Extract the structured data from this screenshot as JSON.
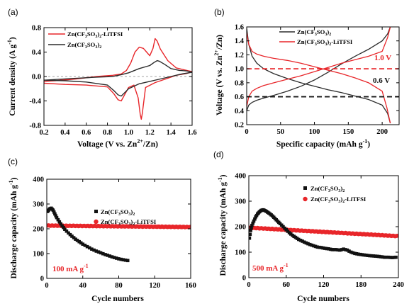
{
  "chart_data": [
    {
      "id": "a",
      "panel_label": "(a)",
      "type": "line",
      "xlabel": "Voltage (V vs. Zn2+/Zn)",
      "ylabel": "Current density (A g-1)",
      "xlim": [
        0.2,
        1.6
      ],
      "ylim": [
        -0.8,
        0.8
      ],
      "xticks": [
        "0.2",
        "0.4",
        "0.6",
        "0.8",
        "1.0",
        "1.2",
        "1.4",
        "1.6"
      ],
      "yticks": [
        "-0.8",
        "-0.4",
        "0.0",
        "0.4",
        "0.8"
      ],
      "legend_position": "top-left",
      "series": [
        {
          "name": "Zn(CF3SO3)2-LiTFSI",
          "color": "#e8262a",
          "x": [
            0.2,
            0.4,
            0.6,
            0.8,
            0.86,
            0.9,
            0.93,
            1.0,
            1.05,
            1.09,
            1.11,
            1.12,
            1.13,
            1.16,
            1.25,
            1.35,
            1.45,
            1.55,
            1.6,
            1.55,
            1.45,
            1.37,
            1.3,
            1.27,
            1.25,
            1.23,
            1.2,
            1.17,
            1.14,
            1.1,
            1.06,
            1.02,
            0.98,
            0.93,
            0.85,
            0.7,
            0.5,
            0.3,
            0.2
          ],
          "y": [
            -0.11,
            -0.13,
            -0.14,
            -0.17,
            -0.28,
            -0.38,
            -0.4,
            -0.18,
            -0.14,
            -0.35,
            -0.62,
            -0.7,
            -0.6,
            -0.18,
            -0.1,
            -0.04,
            0.02,
            0.05,
            0.08,
            0.1,
            0.14,
            0.26,
            0.45,
            0.58,
            0.62,
            0.46,
            0.34,
            0.4,
            0.46,
            0.48,
            0.4,
            0.22,
            0.1,
            0.04,
            0.02,
            0.0,
            -0.04,
            -0.07,
            -0.08
          ]
        },
        {
          "name": "Zn(CF3SO3)2",
          "color": "#2b2b2b",
          "x": [
            0.2,
            0.4,
            0.6,
            0.8,
            0.86,
            0.9,
            0.93,
            0.96,
            1.0,
            1.1,
            1.2,
            1.3,
            1.4,
            1.5,
            1.6,
            1.55,
            1.48,
            1.4,
            1.34,
            1.29,
            1.27,
            1.24,
            1.2,
            1.1,
            1.0,
            0.93,
            0.85,
            0.7,
            0.5,
            0.3,
            0.2
          ],
          "y": [
            -0.06,
            -0.07,
            -0.09,
            -0.14,
            -0.23,
            -0.3,
            -0.32,
            -0.27,
            -0.2,
            -0.12,
            -0.08,
            -0.04,
            0.0,
            0.04,
            0.07,
            0.09,
            0.1,
            0.13,
            0.2,
            0.25,
            0.26,
            0.23,
            0.18,
            0.13,
            0.06,
            0.03,
            0.0,
            -0.01,
            -0.03,
            -0.05,
            -0.06
          ]
        }
      ]
    },
    {
      "id": "b",
      "panel_label": "(b)",
      "type": "line",
      "xlabel": "Specific capacity (mAh g-1)",
      "ylabel": "Voltage (V vs. Zn2+/Zn)",
      "xlim": [
        0,
        225
      ],
      "ylim": [
        0.2,
        1.6
      ],
      "xticks": [
        "0",
        "50",
        "100",
        "150",
        "200"
      ],
      "yticks": [
        "0.2",
        "0.4",
        "0.6",
        "0.8",
        "1.0",
        "1.2",
        "1.4",
        "1.6"
      ],
      "legend_position": "top-center",
      "annotations": [
        "1.0 V",
        "0.6 V"
      ],
      "reference_lines": [
        {
          "label": "1.0 V",
          "y": 1.0,
          "color": "#e8262a",
          "dashed": true
        },
        {
          "label": "0.6 V",
          "y": 0.6,
          "color": "#1a1a1a",
          "dashed": true
        }
      ],
      "series": [
        {
          "name": "Zn(CF3SO3)2",
          "color": "#2b2b2b",
          "discharge": {
            "x": [
              0,
              3,
              8,
              15,
              25,
              40,
              60,
              80,
              100,
              120,
              140,
              160,
              180,
              200,
              208,
              212
            ],
            "y": [
              1.58,
              1.35,
              1.18,
              1.08,
              1.0,
              0.93,
              0.86,
              0.8,
              0.75,
              0.7,
              0.66,
              0.61,
              0.56,
              0.48,
              0.36,
              0.22
            ]
          },
          "charge": {
            "x": [
              0,
              3,
              8,
              15,
              25,
              40,
              60,
              80,
              100,
              120,
              140,
              160,
              180,
              200,
              208,
              212
            ],
            "y": [
              0.4,
              0.48,
              0.52,
              0.55,
              0.58,
              0.62,
              0.68,
              0.75,
              0.84,
              0.95,
              1.07,
              1.18,
              1.28,
              1.4,
              1.5,
              1.6
            ]
          }
        },
        {
          "name": "Zn(CF3SO3)2-LiTFSI",
          "color": "#e8262a",
          "discharge": {
            "x": [
              0,
              3,
              8,
              15,
              25,
              40,
              60,
              80,
              100,
              120,
              140,
              160,
              180,
              200,
              207,
              212
            ],
            "y": [
              1.52,
              1.35,
              1.25,
              1.21,
              1.18,
              1.15,
              1.12,
              1.08,
              1.03,
              0.98,
              0.93,
              0.87,
              0.8,
              0.68,
              0.44,
              0.22
            ]
          },
          "charge": {
            "x": [
              0,
              3,
              8,
              15,
              25,
              40,
              60,
              80,
              100,
              120,
              140,
              160,
              180,
              200,
              208,
              212
            ],
            "y": [
              0.46,
              0.6,
              0.68,
              0.72,
              0.76,
              0.8,
              0.85,
              0.9,
              0.96,
              1.02,
              1.08,
              1.13,
              1.18,
              1.25,
              1.45,
              1.6
            ]
          }
        }
      ]
    },
    {
      "id": "c",
      "panel_label": "(c)",
      "type": "scatter",
      "xlabel": "Cycle numbers",
      "ylabel": "Discharge capacity (mAh g-1)",
      "xlim": [
        0,
        160
      ],
      "ylim": [
        0,
        400
      ],
      "xticks": [
        "0",
        "40",
        "80",
        "120",
        "160"
      ],
      "yticks": [
        "0",
        "100",
        "200",
        "300",
        "400"
      ],
      "legend_position": "center-right",
      "annotation": "100 mA g-1",
      "series": [
        {
          "name": "Zn(CF3SO3)2",
          "color": "#111111",
          "marker": "square",
          "x": [
            1,
            3,
            5,
            7,
            9,
            11,
            14,
            17,
            20,
            24,
            28,
            32,
            36,
            40,
            45,
            50,
            55,
            60,
            65,
            70,
            75,
            80,
            85,
            90
          ],
          "y": [
            270,
            280,
            283,
            275,
            260,
            245,
            228,
            212,
            198,
            183,
            170,
            158,
            148,
            138,
            128,
            118,
            110,
            103,
            96,
            90,
            84,
            79,
            75,
            72
          ]
        },
        {
          "name": "Zn(CF3SO3)2-LiTFSI",
          "color": "#e8262a",
          "marker": "circle",
          "x_start": 1,
          "x_end": 160,
          "y_start": 213,
          "y_end": 207
        }
      ]
    },
    {
      "id": "d",
      "panel_label": "(d)",
      "type": "scatter",
      "xlabel": "Cycle numbers",
      "ylabel": "Discharge capacity (mAh g-1)",
      "xlim": [
        0,
        240
      ],
      "ylim": [
        0,
        400
      ],
      "xticks": [
        "0",
        "60",
        "120",
        "180",
        "240"
      ],
      "yticks": [
        "0",
        "100",
        "200",
        "300",
        "400"
      ],
      "legend_position": "top-right",
      "annotation": "500 mA g-1",
      "series": [
        {
          "name": "Zn(CF3SO3)2",
          "color": "#111111",
          "marker": "square",
          "x": [
            1,
            3,
            5,
            8,
            11,
            14,
            17,
            20,
            23,
            26,
            30,
            34,
            38,
            42,
            46,
            50,
            55,
            60,
            65,
            70,
            75,
            80,
            86,
            92,
            98,
            104,
            110,
            116,
            122,
            128,
            134,
            140,
            146,
            152,
            158,
            164,
            170,
            176,
            182,
            188,
            194,
            200,
            206,
            212,
            218,
            224,
            230,
            236
          ],
          "y": [
            155,
            185,
            205,
            222,
            238,
            250,
            258,
            264,
            266,
            263,
            257,
            250,
            242,
            232,
            222,
            212,
            200,
            188,
            176,
            166,
            158,
            150,
            143,
            136,
            130,
            125,
            120,
            118,
            115,
            113,
            110,
            110,
            108,
            112,
            108,
            100,
            95,
            92,
            90,
            88,
            86,
            85,
            84,
            82,
            80,
            80,
            79,
            80
          ]
        },
        {
          "name": "Zn(CF3SO3)2-LiTFSI",
          "color": "#e8262a",
          "marker": "circle",
          "x_start": 1,
          "x_end": 238,
          "y_start": 196,
          "y_end": 163
        }
      ]
    }
  ]
}
